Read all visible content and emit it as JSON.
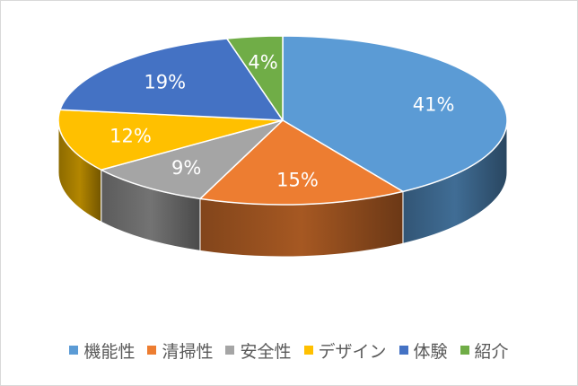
{
  "chart_data": {
    "type": "pie",
    "categories": [
      "機能性",
      "清掃性",
      "安全性",
      "デザイン",
      "体験",
      "紹介"
    ],
    "values": [
      41,
      15,
      9,
      12,
      19,
      4
    ],
    "labels": [
      "41%",
      "15%",
      "9%",
      "12%",
      "19%",
      "4%"
    ],
    "colors": [
      "#5b9bd5",
      "#ed7d31",
      "#a5a5a5",
      "#ffc000",
      "#4472c4",
      "#70ad47"
    ],
    "start_angle_deg": -90,
    "direction": "clockwise",
    "three_d": true,
    "legend_position": "bottom"
  }
}
